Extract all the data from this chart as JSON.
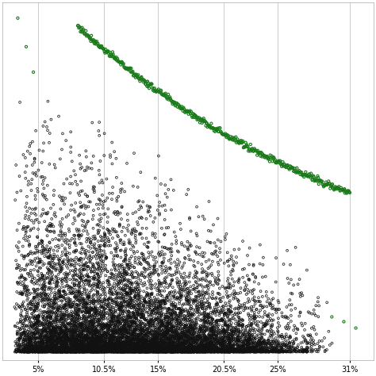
{
  "xlim": [
    0.02,
    0.33
  ],
  "ylim": [
    -500,
    22000
  ],
  "xticks": [
    0.05,
    0.105,
    0.15,
    0.205,
    0.25,
    0.31
  ],
  "xtick_labels": [
    "5%",
    "10.5%",
    "15%",
    "20.5%",
    "25%",
    "31%"
  ],
  "grid_color": "#cccccc",
  "background_color": "#ffffff",
  "black_dot_color": "#111111",
  "green_dot_color": "#1a7a1a",
  "n_black": 12000,
  "n_green": 500,
  "seed_black": 42,
  "seed_green": 77,
  "marker_size_black": 4.0,
  "marker_size_green": 5.0,
  "lw_black": 0.6,
  "lw_green": 0.8
}
